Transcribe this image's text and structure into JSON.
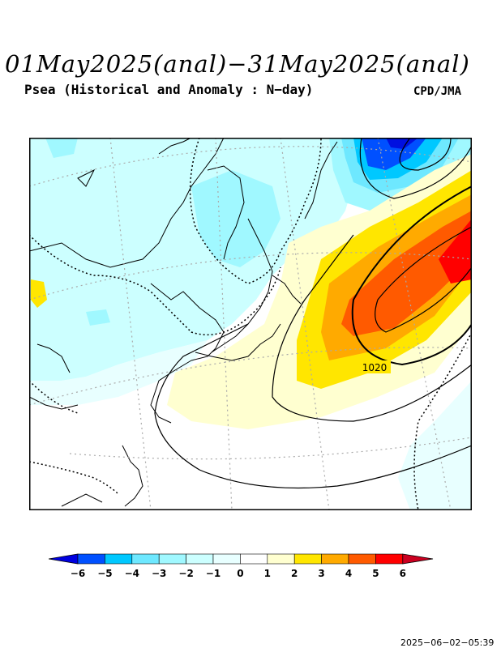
{
  "header": {
    "title": "01May2025(anal)−31May2025(anal)",
    "subtitle": "Psea (Historical and Anomaly : N−day)",
    "credit": "CPD/JMA"
  },
  "map": {
    "contour_label": "1020",
    "anomaly_colors": {
      "neg6": "#0010e0",
      "neg5": "#0050ff",
      "neg4": "#00c8ff",
      "neg3": "#6ee8ff",
      "neg2": "#a0f8ff",
      "neg1": "#ccffff",
      "zero": "#e8ffff",
      "pos1": "#ffffd0",
      "pos2": "#ffe600",
      "pos3": "#ffaa00",
      "pos4": "#ff5a00",
      "pos5": "#ff0000",
      "pos6": "#cc0020"
    }
  },
  "colorbar": {
    "ticks": [
      "−6",
      "−5",
      "−4",
      "−3",
      "−2",
      "−1",
      "0",
      "1",
      "2",
      "3",
      "4",
      "5",
      "6"
    ]
  },
  "footer": {
    "timestamp": "2025−06−02−05:39"
  }
}
